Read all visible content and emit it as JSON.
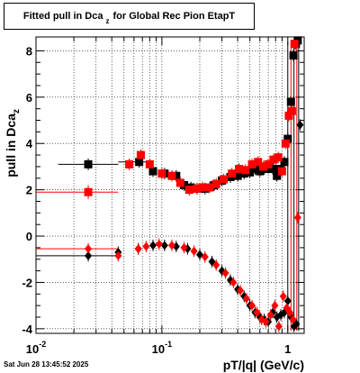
{
  "chart_data": {
    "type": "scatter",
    "title": "Fitted pull in Dca z for Global Rec Pion EtapT",
    "title_main": "Fitted pull in Dca",
    "title_sub": "z",
    "title_rest": "for Global Rec Pion EtapT",
    "xlabel": "pT/|q| (GeV/c)",
    "ylabel_main": "pull in Dca",
    "ylabel_sub": "z",
    "xscale": "log",
    "xlim": [
      0.01,
      1.35
    ],
    "ylim": [
      -4.2,
      8.6
    ],
    "grid": true,
    "x_tick_labels": [
      {
        "v": 0.01,
        "base": "10",
        "exp": "-2"
      },
      {
        "v": 0.1,
        "base": "10",
        "exp": "-1"
      },
      {
        "v": 1,
        "base": "1",
        "exp": ""
      }
    ],
    "y_tick_labels": [
      "-4",
      "-2",
      "0",
      "2",
      "4",
      "6",
      "8"
    ],
    "y_tick_values": [
      -4,
      -2,
      0,
      2,
      4,
      6,
      8
    ],
    "series": [
      {
        "marker": "square",
        "color": "#000000",
        "points": [
          {
            "x": 0.026,
            "y": 3.1,
            "xerr": [
              0.015,
              0.045
            ],
            "yerr": 0.25
          },
          {
            "x": 0.066,
            "y": 3.2,
            "xerr": [
              0.045,
              0.085
            ]
          },
          {
            "x": 0.085,
            "y": 2.8
          },
          {
            "x": 0.105,
            "y": 2.7
          },
          {
            "x": 0.13,
            "y": 2.6
          },
          {
            "x": 0.15,
            "y": 2.2
          },
          {
            "x": 0.17,
            "y": 2.1
          },
          {
            "x": 0.19,
            "y": 2.05
          },
          {
            "x": 0.22,
            "y": 2.05
          },
          {
            "x": 0.26,
            "y": 2.2
          },
          {
            "x": 0.3,
            "y": 2.4
          },
          {
            "x": 0.35,
            "y": 2.55
          },
          {
            "x": 0.4,
            "y": 2.6
          },
          {
            "x": 0.45,
            "y": 2.7
          },
          {
            "x": 0.5,
            "y": 2.75
          },
          {
            "x": 0.55,
            "y": 2.9
          },
          {
            "x": 0.6,
            "y": 2.8
          },
          {
            "x": 0.65,
            "y": 2.9
          },
          {
            "x": 0.7,
            "y": 2.95
          },
          {
            "x": 0.76,
            "y": 2.9
          },
          {
            "x": 0.82,
            "y": 2.6
          },
          {
            "x": 0.88,
            "y": 2.9
          },
          {
            "x": 0.94,
            "y": 3.2
          },
          {
            "x": 1.0,
            "y": 4.2
          },
          {
            "x": 1.06,
            "y": 5.8
          },
          {
            "x": 1.11,
            "y": 7.8
          },
          {
            "x": 1.16,
            "y": 8.3
          },
          {
            "x": 1.2,
            "y": 8.45
          }
        ]
      },
      {
        "marker": "square",
        "color": "#ff0000",
        "points": [
          {
            "x": 0.026,
            "y": 1.9,
            "xerr": [
              0.01,
              0.045
            ],
            "yerr": 0.3
          },
          {
            "x": 0.055,
            "y": 3.1
          },
          {
            "x": 0.068,
            "y": 3.5
          },
          {
            "x": 0.08,
            "y": 3.1
          },
          {
            "x": 0.1,
            "y": 2.7
          },
          {
            "x": 0.12,
            "y": 2.6
          },
          {
            "x": 0.14,
            "y": 2.3
          },
          {
            "x": 0.165,
            "y": 2.0
          },
          {
            "x": 0.19,
            "y": 2.05
          },
          {
            "x": 0.21,
            "y": 2.1
          },
          {
            "x": 0.24,
            "y": 2.1
          },
          {
            "x": 0.27,
            "y": 2.25
          },
          {
            "x": 0.31,
            "y": 2.45
          },
          {
            "x": 0.36,
            "y": 2.7
          },
          {
            "x": 0.41,
            "y": 2.9
          },
          {
            "x": 0.46,
            "y": 2.85
          },
          {
            "x": 0.52,
            "y": 3.1
          },
          {
            "x": 0.58,
            "y": 3.2
          },
          {
            "x": 0.64,
            "y": 3.0
          },
          {
            "x": 0.7,
            "y": 3.1
          },
          {
            "x": 0.77,
            "y": 3.3
          },
          {
            "x": 0.84,
            "y": 3.4
          },
          {
            "x": 0.9,
            "y": 2.8
          },
          {
            "x": 0.96,
            "y": 4.0
          },
          {
            "x": 1.02,
            "y": 5.2
          },
          {
            "x": 1.08,
            "y": 5.4
          },
          {
            "x": 1.13,
            "y": 8.3
          }
        ]
      },
      {
        "marker": "diamond",
        "color": "#000000",
        "points": [
          {
            "x": 0.026,
            "y": -0.85,
            "xerr": [
              0.01,
              0.045
            ]
          },
          {
            "x": 0.045,
            "y": -0.7
          },
          {
            "x": 0.065,
            "y": -0.55
          },
          {
            "x": 0.085,
            "y": -0.4
          },
          {
            "x": 0.105,
            "y": -0.4
          },
          {
            "x": 0.13,
            "y": -0.45
          },
          {
            "x": 0.16,
            "y": -0.55
          },
          {
            "x": 0.2,
            "y": -0.8
          },
          {
            "x": 0.25,
            "y": -1.1
          },
          {
            "x": 0.3,
            "y": -1.5
          },
          {
            "x": 0.35,
            "y": -1.9
          },
          {
            "x": 0.4,
            "y": -2.3
          },
          {
            "x": 0.45,
            "y": -2.6
          },
          {
            "x": 0.5,
            "y": -3.0
          },
          {
            "x": 0.55,
            "y": -3.3
          },
          {
            "x": 0.6,
            "y": -3.5
          },
          {
            "x": 0.65,
            "y": -3.6
          },
          {
            "x": 0.7,
            "y": -3.7
          },
          {
            "x": 0.76,
            "y": -3.3
          },
          {
            "x": 0.82,
            "y": -3.5
          },
          {
            "x": 0.88,
            "y": -3.4
          },
          {
            "x": 0.94,
            "y": -3.3
          },
          {
            "x": 1.0,
            "y": -2.8
          },
          {
            "x": 1.06,
            "y": -3.5
          },
          {
            "x": 1.12,
            "y": -3.9
          },
          {
            "x": 1.17,
            "y": -3.8
          },
          {
            "x": 1.25,
            "y": 4.8
          }
        ]
      },
      {
        "marker": "diamond",
        "color": "#ff0000",
        "points": [
          {
            "x": 0.026,
            "y": -0.55,
            "xerr": [
              0.01,
              0.045
            ]
          },
          {
            "x": 0.045,
            "y": -0.85
          },
          {
            "x": 0.065,
            "y": -0.55
          },
          {
            "x": 0.075,
            "y": -0.45
          },
          {
            "x": 0.095,
            "y": -0.35
          },
          {
            "x": 0.12,
            "y": -0.4
          },
          {
            "x": 0.15,
            "y": -0.5
          },
          {
            "x": 0.18,
            "y": -0.65
          },
          {
            "x": 0.22,
            "y": -0.9
          },
          {
            "x": 0.27,
            "y": -1.25
          },
          {
            "x": 0.32,
            "y": -1.6
          },
          {
            "x": 0.37,
            "y": -2.0
          },
          {
            "x": 0.42,
            "y": -2.35
          },
          {
            "x": 0.47,
            "y": -2.7
          },
          {
            "x": 0.52,
            "y": -3.0
          },
          {
            "x": 0.57,
            "y": -3.3
          },
          {
            "x": 0.62,
            "y": -3.6
          },
          {
            "x": 0.67,
            "y": -3.7
          },
          {
            "x": 0.73,
            "y": -3.4
          },
          {
            "x": 0.79,
            "y": -3.0
          },
          {
            "x": 0.85,
            "y": -3.9
          },
          {
            "x": 0.92,
            "y": -2.6
          },
          {
            "x": 0.98,
            "y": -3.1
          },
          {
            "x": 1.04,
            "y": -3.3
          },
          {
            "x": 1.1,
            "y": -3.6
          },
          {
            "x": 1.2,
            "y": 0.8
          }
        ]
      }
    ]
  },
  "timestamp": "Sat Jun 28 13:45:52 2025"
}
